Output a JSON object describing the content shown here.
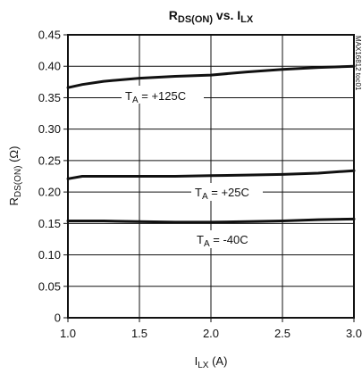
{
  "chart_data": {
    "type": "line",
    "title_main": "R",
    "title_sub": "DS(ON)",
    "title_mid": " vs. I",
    "title_sub2": "LX",
    "xlabel_main": "I",
    "xlabel_sub": "LX",
    "xlabel_unit": " (A)",
    "ylabel": "R",
    "ylabel_sub": "DS(ON)",
    "ylabel_unit": " (Ω)",
    "side_text": "MAX16812 toc01",
    "xlim": [
      1.0,
      3.0
    ],
    "ylim": [
      0,
      0.45
    ],
    "xticks": [
      "1.0",
      "1.5",
      "2.0",
      "2.5",
      "3.0"
    ],
    "yticks": [
      "0",
      "0.05",
      "0.10",
      "0.15",
      "0.20",
      "0.25",
      "0.30",
      "0.35",
      "0.40",
      "0.45"
    ],
    "grid": true,
    "series": [
      {
        "name": "T_A = +125C",
        "label_main": "T",
        "label_sub": "A",
        "label_rest": " = +125C",
        "x": [
          1.0,
          1.1,
          1.25,
          1.5,
          1.75,
          2.0,
          2.25,
          2.5,
          2.75,
          3.0
        ],
        "y": [
          0.366,
          0.371,
          0.376,
          0.381,
          0.384,
          0.386,
          0.391,
          0.395,
          0.398,
          0.4
        ]
      },
      {
        "name": "T_A = +25C",
        "label_main": "T",
        "label_sub": "A",
        "label_rest": " = +25C",
        "x": [
          1.0,
          1.1,
          1.25,
          1.5,
          1.75,
          2.0,
          2.25,
          2.5,
          2.75,
          3.0
        ],
        "y": [
          0.221,
          0.225,
          0.225,
          0.225,
          0.225,
          0.226,
          0.227,
          0.228,
          0.23,
          0.234
        ]
      },
      {
        "name": "T_A = -40C",
        "label_main": "T",
        "label_sub": "A",
        "label_rest": " = -40C",
        "x": [
          1.0,
          1.1,
          1.25,
          1.5,
          1.75,
          2.0,
          2.25,
          2.5,
          2.75,
          3.0
        ],
        "y": [
          0.154,
          0.154,
          0.154,
          0.153,
          0.152,
          0.152,
          0.153,
          0.154,
          0.156,
          0.157
        ]
      }
    ]
  }
}
